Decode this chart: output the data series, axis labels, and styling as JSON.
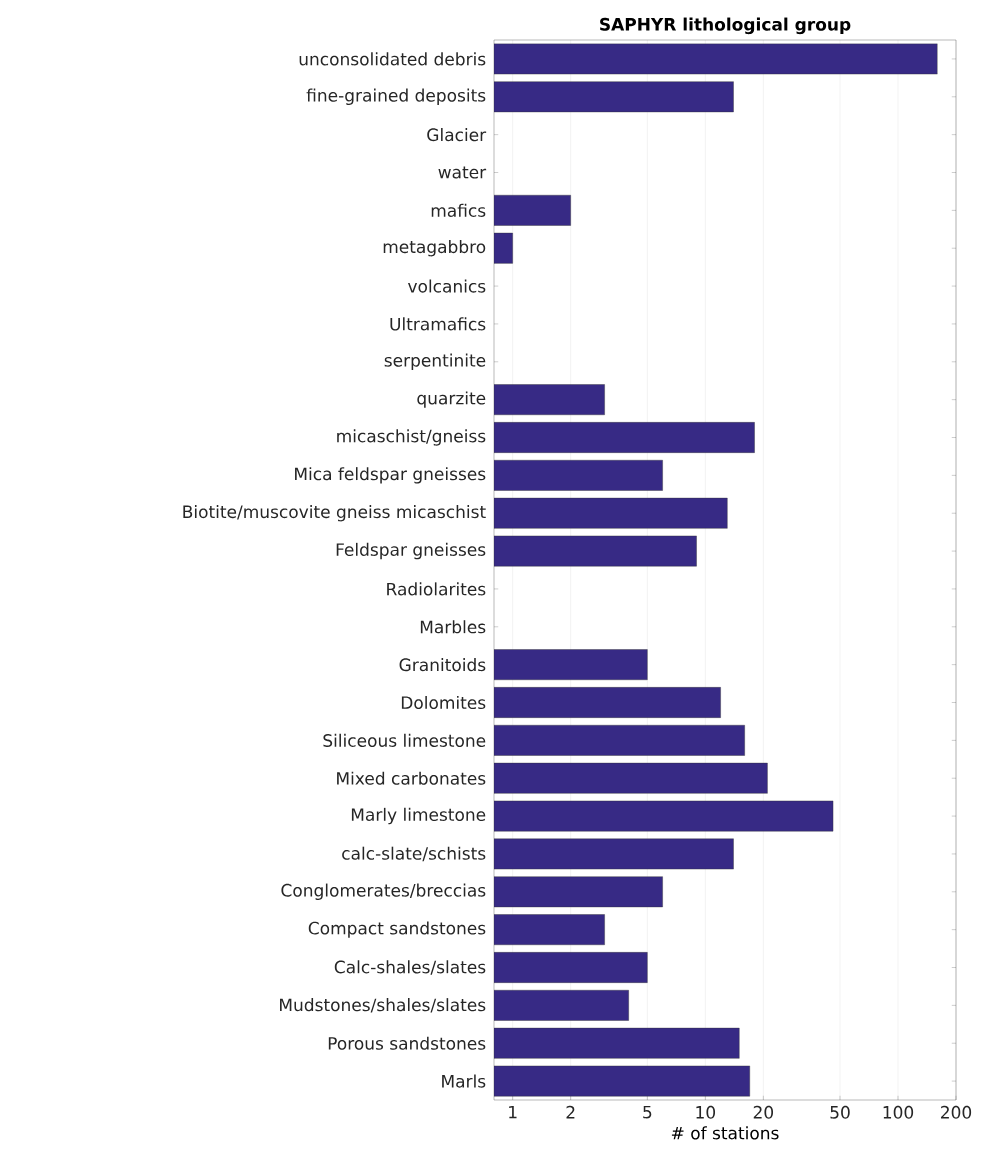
{
  "chart_data": {
    "type": "bar",
    "orientation": "horizontal",
    "title": "SAPHYR lithological group",
    "xlabel": "# of stations",
    "categories": [
      "unconsolidated debris",
      "fine-grained deposits",
      "Glacier",
      "water",
      "mafics",
      "metagabbro",
      "volcanics",
      "Ultramafics",
      "serpentinite",
      "quarzite",
      "micaschist/gneiss",
      "Mica feldspar gneisses",
      "Biotite/muscovite gneiss micaschist",
      "Feldspar gneisses",
      "Radiolarites",
      "Marbles",
      "Granitoids",
      "Dolomites",
      "Siliceous limestone",
      "Mixed carbonates",
      "Marly limestone",
      "calc-slate/schists",
      "Conglomerates/breccias",
      "Compact sandstones",
      "Calc-shales/slates",
      "Mudstones/shales/slates",
      "Porous sandstones",
      "Marls"
    ],
    "values": [
      160,
      14,
      null,
      null,
      2,
      1,
      null,
      null,
      null,
      3,
      18,
      6,
      13,
      9,
      null,
      null,
      5,
      12,
      16,
      21,
      46,
      14,
      6,
      3,
      5,
      4,
      15,
      17
    ],
    "color": "#372a85",
    "log": "x",
    "grid": "x",
    "xlim": [
      0.8,
      200
    ],
    "xticks": [
      1,
      2,
      5,
      10,
      20,
      50,
      100,
      200
    ]
  }
}
